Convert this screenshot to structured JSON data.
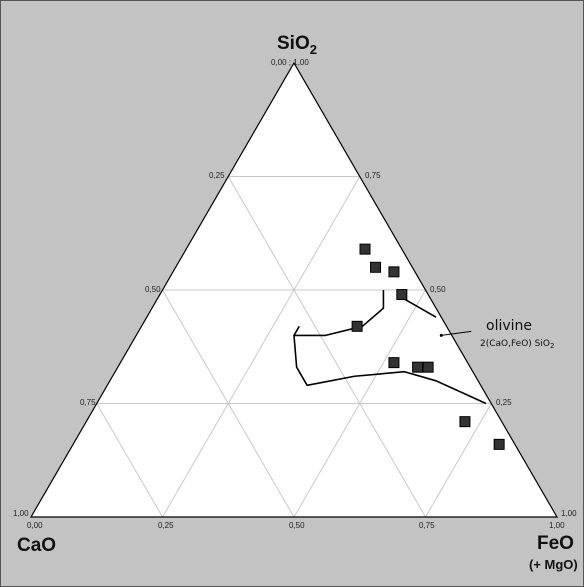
{
  "chart_data": {
    "type": "ternary-scatter",
    "apex_labels": {
      "top": {
        "main": "SiO",
        "sub": "2"
      },
      "left": "CaO",
      "right": {
        "line1": "FeO",
        "line2": "(+ MgO)"
      }
    },
    "apex_values": {
      "top": "0,00 ; 1,00",
      "left": "1,00",
      "right": "1,00"
    },
    "tick_values": [
      "0,00",
      "0,25",
      "0,50",
      "0,75",
      "1,00"
    ],
    "left_edge_ticks": [
      "0,25",
      "0,50",
      "0,75"
    ],
    "right_edge_ticks": [
      "0,75",
      "0,50",
      "0,25"
    ],
    "bottom_edge_ticks": [
      "0,00",
      "0,25",
      "0,50",
      "0,75",
      "1,00"
    ],
    "grid": true,
    "grid_step": 0.25,
    "points": [
      {
        "SiO2": 0.59,
        "FeO": 0.34,
        "CaO": 0.07
      },
      {
        "SiO2": 0.55,
        "FeO": 0.38,
        "CaO": 0.07
      },
      {
        "SiO2": 0.54,
        "FeO": 0.42,
        "CaO": 0.04
      },
      {
        "SiO2": 0.49,
        "FeO": 0.46,
        "CaO": 0.05
      },
      {
        "SiO2": 0.42,
        "FeO": 0.41,
        "CaO": 0.17
      },
      {
        "SiO2": 0.34,
        "FeO": 0.52,
        "CaO": 0.14
      },
      {
        "SiO2": 0.33,
        "FeO": 0.57,
        "CaO": 0.1
      },
      {
        "SiO2": 0.33,
        "FeO": 0.59,
        "CaO": 0.08
      },
      {
        "SiO2": 0.21,
        "FeO": 0.72,
        "CaO": 0.07
      },
      {
        "SiO2": 0.16,
        "FeO": 0.81,
        "CaO": 0.03
      }
    ],
    "field_boundaries": [
      [
        {
          "SiO2": 0.42,
          "FeO": 0.3,
          "CaO": 0.28
        },
        {
          "SiO2": 0.4,
          "FeO": 0.3,
          "CaO": 0.3
        },
        {
          "SiO2": 0.4,
          "FeO": 0.36,
          "CaO": 0.24
        },
        {
          "SiO2": 0.42,
          "FeO": 0.42,
          "CaO": 0.16
        },
        {
          "SiO2": 0.46,
          "FeO": 0.44,
          "CaO": 0.1
        },
        {
          "SiO2": 0.5,
          "FeO": 0.42,
          "CaO": 0.08
        }
      ],
      [
        {
          "SiO2": 0.4,
          "FeO": 0.3,
          "CaO": 0.3
        },
        {
          "SiO2": 0.33,
          "FeO": 0.34,
          "CaO": 0.33
        },
        {
          "SiO2": 0.29,
          "FeO": 0.38,
          "CaO": 0.33
        },
        {
          "SiO2": 0.31,
          "FeO": 0.46,
          "CaO": 0.23
        },
        {
          "SiO2": 0.32,
          "FeO": 0.55,
          "CaO": 0.13
        },
        {
          "SiO2": 0.3,
          "FeO": 0.62,
          "CaO": 0.08
        },
        {
          "SiO2": 0.25,
          "FeO": 0.74,
          "CaO": 0.01
        }
      ],
      [
        {
          "SiO2": 0.49,
          "FeO": 0.45,
          "CaO": 0.06
        },
        {
          "SiO2": 0.44,
          "FeO": 0.55,
          "CaO": 0.01
        }
      ]
    ],
    "annotation": {
      "label": "olivine",
      "formula": "2(CaO,FeO) SiO",
      "formula_sub": "2",
      "pointer": {
        "SiO2": 0.4,
        "FeO": 0.58,
        "CaO": 0.02
      }
    },
    "colors": {
      "background": "#c3c3c3",
      "plot_area": "#ffffff",
      "grid": "#c8c8c8",
      "outline": "#000000",
      "marker_fill": "#333333",
      "marker_edge": "#000000"
    }
  }
}
